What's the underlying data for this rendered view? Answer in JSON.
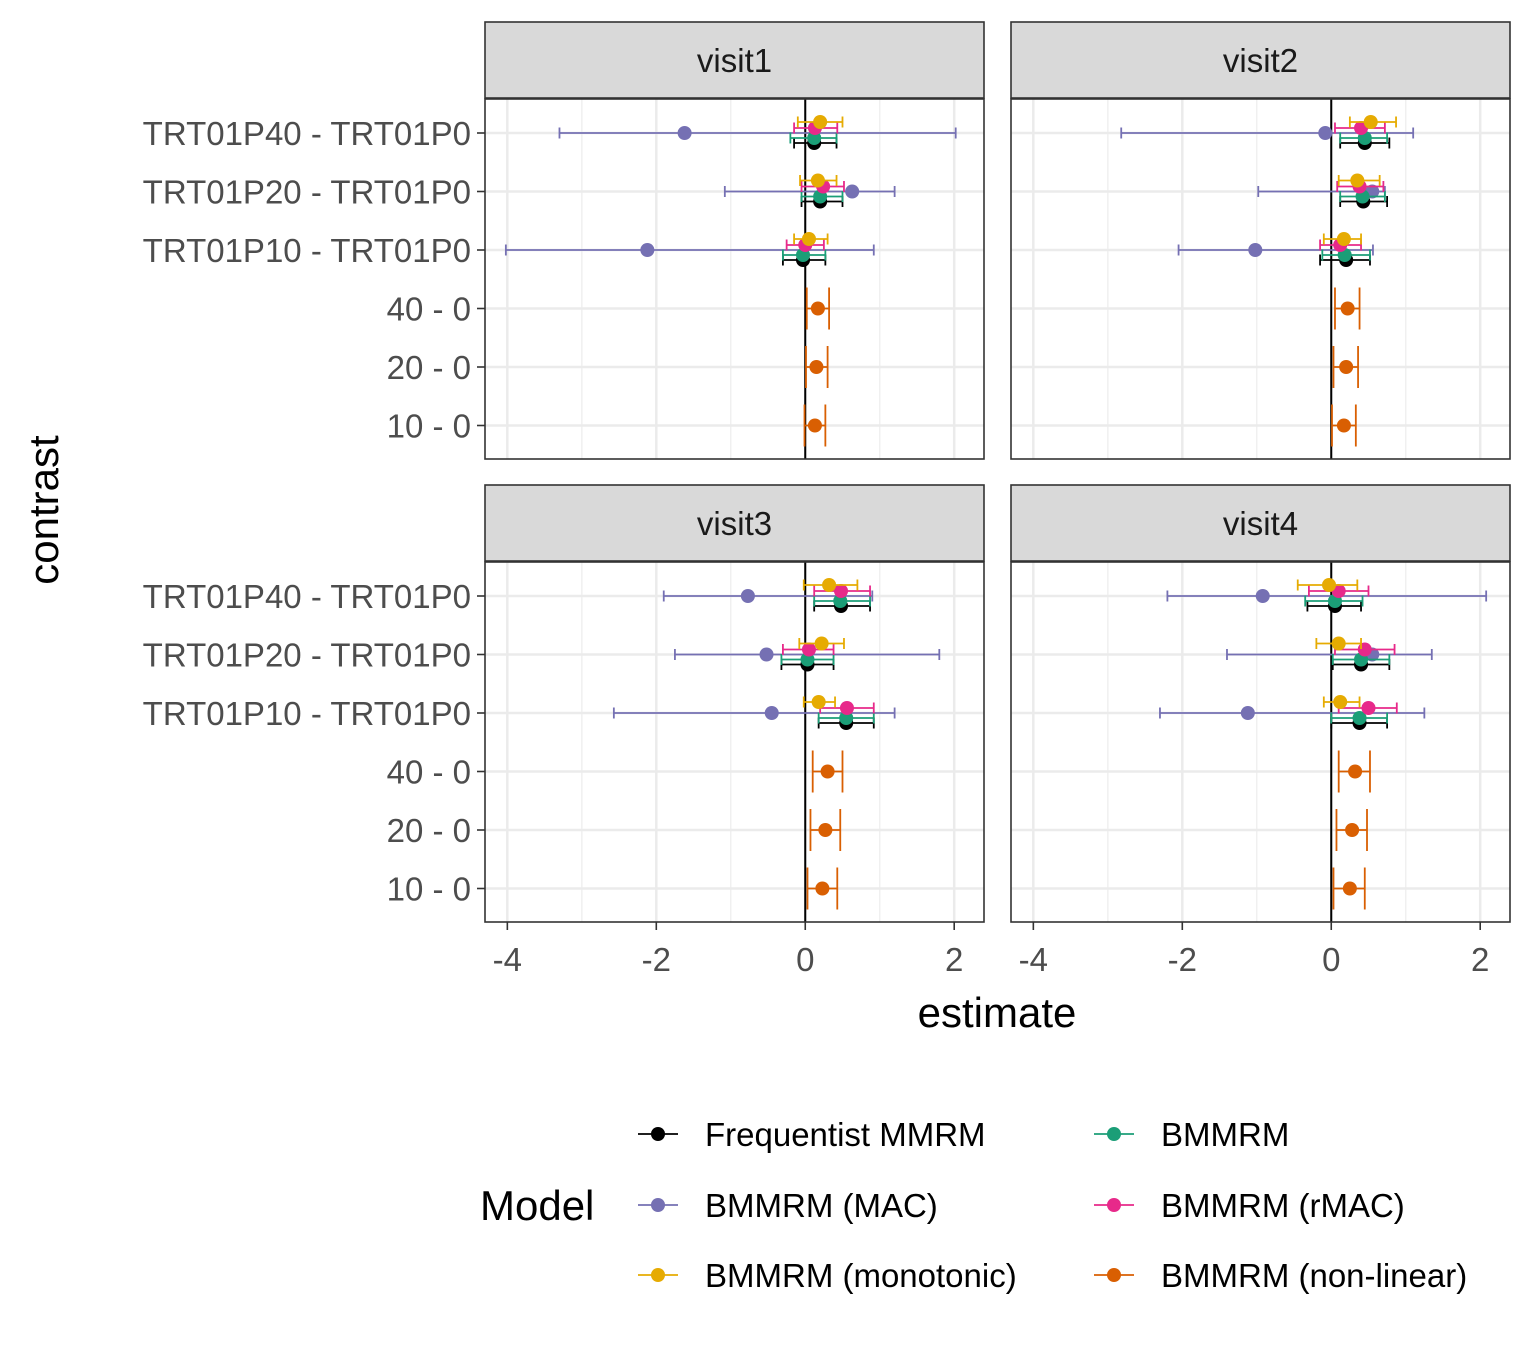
{
  "chart_data": {
    "type": "forest",
    "xlabel": "estimate",
    "ylabel": "contrast",
    "xlim": [
      -4.3,
      2.4
    ],
    "xticks": [
      -4,
      -2,
      0,
      2
    ],
    "xtick_labels": [
      "-4",
      "-2",
      "0",
      "2"
    ],
    "reference_line_x": 0,
    "grid": true,
    "categories": [
      "TRT01P40 - TRT01P0",
      "TRT01P20 - TRT01P0",
      "TRT01P10 - TRT01P0",
      "40 - 0",
      "20 - 0",
      "10 - 0"
    ],
    "legend": {
      "title": "Model",
      "position": "bottom",
      "entries": [
        {
          "key": "freq",
          "label": "Frequentist MMRM",
          "color": "#000000"
        },
        {
          "key": "bmmrm",
          "label": "BMMRM",
          "color": "#1B9E77"
        },
        {
          "key": "mac",
          "label": "BMMRM (MAC)",
          "color": "#7570B3"
        },
        {
          "key": "rmac",
          "label": "BMMRM (rMAC)",
          "color": "#E7298A"
        },
        {
          "key": "mono",
          "label": "BMMRM (monotonic)",
          "color": "#E6AB02"
        },
        {
          "key": "nonlin",
          "label": "BMMRM (non-linear)",
          "color": "#D95F02"
        }
      ]
    },
    "panels": [
      {
        "title": "visit1",
        "series": {
          "mono": [
            {
              "cat": 0,
              "est": 0.2,
              "lo": -0.1,
              "hi": 0.5
            },
            {
              "cat": 1,
              "est": 0.17,
              "lo": -0.07,
              "hi": 0.42
            },
            {
              "cat": 2,
              "est": 0.05,
              "lo": -0.15,
              "hi": 0.3
            }
          ],
          "rmac": [
            {
              "cat": 0,
              "est": 0.13,
              "lo": -0.15,
              "hi": 0.43
            },
            {
              "cat": 1,
              "est": 0.24,
              "lo": -0.05,
              "hi": 0.52
            },
            {
              "cat": 2,
              "est": 0.0,
              "lo": -0.25,
              "hi": 0.25
            }
          ],
          "mac": [
            {
              "cat": 0,
              "est": -1.62,
              "lo": -3.3,
              "hi": 2.02
            },
            {
              "cat": 1,
              "est": 0.63,
              "lo": -1.08,
              "hi": 1.2
            },
            {
              "cat": 2,
              "est": -2.12,
              "lo": -4.02,
              "hi": 0.92
            }
          ],
          "bmmrm": [
            {
              "cat": 0,
              "est": 0.12,
              "lo": -0.2,
              "hi": 0.42
            },
            {
              "cat": 1,
              "est": 0.2,
              "lo": -0.05,
              "hi": 0.5
            },
            {
              "cat": 2,
              "est": -0.03,
              "lo": -0.3,
              "hi": 0.27
            }
          ],
          "freq": [
            {
              "cat": 0,
              "est": 0.12,
              "lo": -0.15,
              "hi": 0.42
            },
            {
              "cat": 1,
              "est": 0.2,
              "lo": -0.05,
              "hi": 0.5
            },
            {
              "cat": 2,
              "est": -0.03,
              "lo": -0.3,
              "hi": 0.27
            }
          ],
          "nonlin": [
            {
              "cat": 3,
              "est": 0.17,
              "lo": 0.02,
              "hi": 0.32
            },
            {
              "cat": 4,
              "est": 0.15,
              "lo": 0.01,
              "hi": 0.3
            },
            {
              "cat": 5,
              "est": 0.13,
              "lo": -0.01,
              "hi": 0.27
            }
          ]
        }
      },
      {
        "title": "visit2",
        "series": {
          "mono": [
            {
              "cat": 0,
              "est": 0.53,
              "lo": 0.25,
              "hi": 0.87
            },
            {
              "cat": 1,
              "est": 0.35,
              "lo": 0.1,
              "hi": 0.65
            },
            {
              "cat": 2,
              "est": 0.17,
              "lo": -0.1,
              "hi": 0.4
            }
          ],
          "rmac": [
            {
              "cat": 0,
              "est": 0.4,
              "lo": 0.05,
              "hi": 0.72
            },
            {
              "cat": 1,
              "est": 0.38,
              "lo": 0.08,
              "hi": 0.7
            },
            {
              "cat": 2,
              "est": 0.12,
              "lo": -0.15,
              "hi": 0.4
            }
          ],
          "mac": [
            {
              "cat": 0,
              "est": -0.08,
              "lo": -2.82,
              "hi": 1.1
            },
            {
              "cat": 1,
              "est": 0.55,
              "lo": -0.98,
              "hi": 0.72
            },
            {
              "cat": 2,
              "est": -1.02,
              "lo": -2.05,
              "hi": 0.56
            }
          ],
          "bmmrm": [
            {
              "cat": 0,
              "est": 0.45,
              "lo": 0.12,
              "hi": 0.75
            },
            {
              "cat": 1,
              "est": 0.42,
              "lo": 0.12,
              "hi": 0.72
            },
            {
              "cat": 2,
              "est": 0.18,
              "lo": -0.12,
              "hi": 0.52
            }
          ],
          "freq": [
            {
              "cat": 0,
              "est": 0.45,
              "lo": 0.12,
              "hi": 0.78
            },
            {
              "cat": 1,
              "est": 0.43,
              "lo": 0.12,
              "hi": 0.75
            },
            {
              "cat": 2,
              "est": 0.2,
              "lo": -0.15,
              "hi": 0.52
            }
          ],
          "nonlin": [
            {
              "cat": 3,
              "est": 0.22,
              "lo": 0.05,
              "hi": 0.38
            },
            {
              "cat": 4,
              "est": 0.2,
              "lo": 0.03,
              "hi": 0.36
            },
            {
              "cat": 5,
              "est": 0.17,
              "lo": 0.01,
              "hi": 0.33
            }
          ]
        }
      },
      {
        "title": "visit3",
        "series": {
          "mono": [
            {
              "cat": 0,
              "est": 0.32,
              "lo": -0.02,
              "hi": 0.7
            },
            {
              "cat": 1,
              "est": 0.22,
              "lo": -0.08,
              "hi": 0.52
            },
            {
              "cat": 2,
              "est": 0.18,
              "lo": -0.02,
              "hi": 0.4
            }
          ],
          "rmac": [
            {
              "cat": 0,
              "est": 0.48,
              "lo": 0.12,
              "hi": 0.87
            },
            {
              "cat": 1,
              "est": 0.05,
              "lo": -0.3,
              "hi": 0.38
            },
            {
              "cat": 2,
              "est": 0.56,
              "lo": 0.2,
              "hi": 0.92
            }
          ],
          "mac": [
            {
              "cat": 0,
              "est": -0.77,
              "lo": -1.9,
              "hi": 0.9
            },
            {
              "cat": 1,
              "est": -0.52,
              "lo": -1.75,
              "hi": 1.8
            },
            {
              "cat": 2,
              "est": -0.45,
              "lo": -2.57,
              "hi": 1.2
            }
          ],
          "bmmrm": [
            {
              "cat": 0,
              "est": 0.47,
              "lo": 0.12,
              "hi": 0.87
            },
            {
              "cat": 1,
              "est": 0.03,
              "lo": -0.32,
              "hi": 0.38
            },
            {
              "cat": 2,
              "est": 0.55,
              "lo": 0.18,
              "hi": 0.92
            }
          ],
          "freq": [
            {
              "cat": 0,
              "est": 0.48,
              "lo": 0.12,
              "hi": 0.87
            },
            {
              "cat": 1,
              "est": 0.03,
              "lo": -0.32,
              "hi": 0.38
            },
            {
              "cat": 2,
              "est": 0.55,
              "lo": 0.18,
              "hi": 0.92
            }
          ],
          "nonlin": [
            {
              "cat": 3,
              "est": 0.3,
              "lo": 0.1,
              "hi": 0.5
            },
            {
              "cat": 4,
              "est": 0.27,
              "lo": 0.07,
              "hi": 0.47
            },
            {
              "cat": 5,
              "est": 0.23,
              "lo": 0.03,
              "hi": 0.43
            }
          ]
        }
      },
      {
        "title": "visit4",
        "series": {
          "mono": [
            {
              "cat": 0,
              "est": -0.03,
              "lo": -0.45,
              "hi": 0.35
            },
            {
              "cat": 1,
              "est": 0.1,
              "lo": -0.2,
              "hi": 0.4
            },
            {
              "cat": 2,
              "est": 0.12,
              "lo": -0.1,
              "hi": 0.38
            }
          ],
          "rmac": [
            {
              "cat": 0,
              "est": 0.1,
              "lo": -0.3,
              "hi": 0.5
            },
            {
              "cat": 1,
              "est": 0.45,
              "lo": 0.05,
              "hi": 0.85
            },
            {
              "cat": 2,
              "est": 0.5,
              "lo": 0.1,
              "hi": 0.88
            }
          ],
          "mac": [
            {
              "cat": 0,
              "est": -0.92,
              "lo": -2.2,
              "hi": 2.08
            },
            {
              "cat": 1,
              "est": 0.55,
              "lo": -1.4,
              "hi": 1.35
            },
            {
              "cat": 2,
              "est": -1.12,
              "lo": -2.3,
              "hi": 1.25
            }
          ],
          "bmmrm": [
            {
              "cat": 0,
              "est": 0.05,
              "lo": -0.35,
              "hi": 0.42
            },
            {
              "cat": 1,
              "est": 0.4,
              "lo": 0.02,
              "hi": 0.78
            },
            {
              "cat": 2,
              "est": 0.38,
              "lo": 0.0,
              "hi": 0.75
            }
          ],
          "freq": [
            {
              "cat": 0,
              "est": 0.05,
              "lo": -0.32,
              "hi": 0.4
            },
            {
              "cat": 1,
              "est": 0.4,
              "lo": 0.02,
              "hi": 0.78
            },
            {
              "cat": 2,
              "est": 0.38,
              "lo": 0.0,
              "hi": 0.75
            }
          ],
          "nonlin": [
            {
              "cat": 3,
              "est": 0.32,
              "lo": 0.1,
              "hi": 0.52
            },
            {
              "cat": 4,
              "est": 0.28,
              "lo": 0.07,
              "hi": 0.48
            },
            {
              "cat": 5,
              "est": 0.25,
              "lo": 0.03,
              "hi": 0.45
            }
          ]
        }
      }
    ]
  }
}
